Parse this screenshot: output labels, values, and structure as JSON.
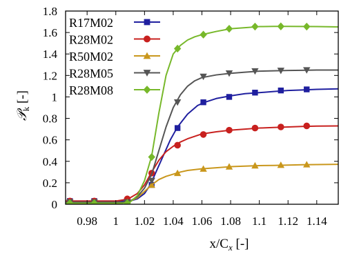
{
  "chart_data": {
    "type": "line",
    "xlabel_main": "x/C",
    "xlabel_sub": "x",
    "xlabel_unit": " [-]",
    "ylabel_main": "𝒫",
    "ylabel_sub": "k",
    "ylabel_unit": " [-]",
    "xlim": [
      0.965,
      1.155
    ],
    "ylim": [
      0,
      1.8
    ],
    "xticks": [
      0.98,
      1,
      1.02,
      1.04,
      1.06,
      1.08,
      1.1,
      1.12,
      1.14
    ],
    "xtick_labels": [
      "0.98",
      "1",
      "1.02",
      "1.04",
      "1.06",
      "1.08",
      "1.1",
      "1.12",
      "1.14"
    ],
    "yticks": [
      0,
      0.2,
      0.4,
      0.6,
      0.8,
      1,
      1.2,
      1.4,
      1.6,
      1.8
    ],
    "ytick_labels": [
      "0",
      "0.2",
      "0.4",
      "0.6",
      "0.8",
      "1",
      "1.2",
      "1.4",
      "1.6",
      "1.8"
    ],
    "grid": false,
    "legend_position": "top-left",
    "series": [
      {
        "name": "R17M02",
        "color": "#1f1f9f",
        "marker": "square",
        "x": [
          0.965,
          0.98,
          0.99,
          1.0,
          1.005,
          1.01,
          1.015,
          1.02,
          1.024,
          1.028,
          1.033,
          1.038,
          1.043,
          1.05,
          1.057,
          1.062,
          1.07,
          1.08,
          1.09,
          1.1,
          1.11,
          1.12,
          1.13,
          1.14,
          1.155
        ],
        "y": [
          0.03,
          0.03,
          0.03,
          0.03,
          0.03,
          0.03,
          0.05,
          0.1,
          0.18,
          0.3,
          0.45,
          0.6,
          0.72,
          0.84,
          0.92,
          0.95,
          0.985,
          1.01,
          1.03,
          1.04,
          1.05,
          1.06,
          1.065,
          1.07,
          1.075
        ],
        "marker_x": [
          0.968,
          0.985,
          1.008,
          1.025,
          1.043,
          1.061,
          1.079,
          1.097,
          1.115,
          1.133
        ],
        "marker_y": [
          0.03,
          0.03,
          0.03,
          0.18,
          0.71,
          0.95,
          1.0,
          1.04,
          1.06,
          1.07
        ]
      },
      {
        "name": "R28M02",
        "color": "#c8201e",
        "marker": "circle",
        "x": [
          0.965,
          0.98,
          0.99,
          1.0,
          1.005,
          1.01,
          1.015,
          1.02,
          1.025,
          1.03,
          1.035,
          1.04,
          1.045,
          1.05,
          1.06,
          1.07,
          1.08,
          1.09,
          1.1,
          1.11,
          1.12,
          1.13,
          1.14,
          1.155
        ],
        "y": [
          0.03,
          0.03,
          0.03,
          0.03,
          0.04,
          0.06,
          0.1,
          0.18,
          0.3,
          0.41,
          0.49,
          0.54,
          0.58,
          0.61,
          0.655,
          0.675,
          0.69,
          0.7,
          0.71,
          0.715,
          0.72,
          0.725,
          0.728,
          0.73
        ],
        "marker_x": [
          0.968,
          0.985,
          1.008,
          1.025,
          1.043,
          1.061,
          1.079,
          1.097,
          1.115,
          1.133
        ],
        "marker_y": [
          0.03,
          0.03,
          0.05,
          0.29,
          0.55,
          0.65,
          0.69,
          0.71,
          0.72,
          0.73
        ]
      },
      {
        "name": "R50M02",
        "color": "#c9971c",
        "marker": "triangle-up",
        "x": [
          0.965,
          0.98,
          0.99,
          1.0,
          1.005,
          1.01,
          1.015,
          1.02,
          1.025,
          1.03,
          1.035,
          1.04,
          1.045,
          1.05,
          1.06,
          1.07,
          1.08,
          1.09,
          1.1,
          1.11,
          1.12,
          1.13,
          1.14,
          1.155
        ],
        "y": [
          0.015,
          0.015,
          0.015,
          0.015,
          0.02,
          0.03,
          0.06,
          0.12,
          0.18,
          0.23,
          0.26,
          0.28,
          0.3,
          0.315,
          0.33,
          0.34,
          0.35,
          0.355,
          0.36,
          0.362,
          0.365,
          0.368,
          0.37,
          0.372
        ],
        "marker_x": [
          0.968,
          0.985,
          1.008,
          1.025,
          1.043,
          1.061,
          1.079,
          1.097,
          1.115,
          1.133
        ],
        "marker_y": [
          0.015,
          0.015,
          0.02,
          0.18,
          0.29,
          0.33,
          0.35,
          0.36,
          0.365,
          0.37
        ]
      },
      {
        "name": "R28M05",
        "color": "#555555",
        "marker": "triangle-down",
        "x": [
          0.965,
          0.98,
          0.99,
          1.0,
          1.005,
          1.01,
          1.015,
          1.02,
          1.025,
          1.03,
          1.035,
          1.04,
          1.045,
          1.05,
          1.055,
          1.06,
          1.07,
          1.08,
          1.09,
          1.1,
          1.11,
          1.12,
          1.13,
          1.14,
          1.155
        ],
        "y": [
          0.02,
          0.02,
          0.02,
          0.02,
          0.02,
          0.03,
          0.07,
          0.15,
          0.28,
          0.5,
          0.72,
          0.9,
          1.02,
          1.1,
          1.15,
          1.18,
          1.205,
          1.22,
          1.23,
          1.24,
          1.243,
          1.246,
          1.248,
          1.25,
          1.25
        ],
        "marker_x": [
          0.968,
          0.985,
          1.008,
          1.025,
          1.043,
          1.061,
          1.079,
          1.097,
          1.115,
          1.133
        ],
        "marker_y": [
          0.02,
          0.02,
          0.02,
          0.22,
          0.95,
          1.19,
          1.22,
          1.24,
          1.245,
          1.25
        ]
      },
      {
        "name": "R28M08",
        "color": "#77b82a",
        "marker": "diamond",
        "x": [
          0.965,
          0.98,
          0.99,
          1.0,
          1.005,
          1.01,
          1.015,
          1.02,
          1.025,
          1.03,
          1.035,
          1.04,
          1.045,
          1.05,
          1.055,
          1.06,
          1.07,
          1.08,
          1.09,
          1.1,
          1.11,
          1.12,
          1.13,
          1.14,
          1.155
        ],
        "y": [
          0.01,
          0.01,
          0.01,
          0.01,
          0.01,
          0.02,
          0.08,
          0.22,
          0.45,
          0.85,
          1.2,
          1.4,
          1.48,
          1.53,
          1.56,
          1.58,
          1.61,
          1.635,
          1.645,
          1.655,
          1.657,
          1.657,
          1.656,
          1.655,
          1.652
        ],
        "marker_x": [
          0.968,
          0.985,
          1.008,
          1.025,
          1.043,
          1.061,
          1.079,
          1.097,
          1.115,
          1.133
        ],
        "marker_y": [
          0.01,
          0.01,
          0.01,
          0.44,
          1.45,
          1.58,
          1.635,
          1.655,
          1.657,
          1.655
        ]
      }
    ]
  }
}
